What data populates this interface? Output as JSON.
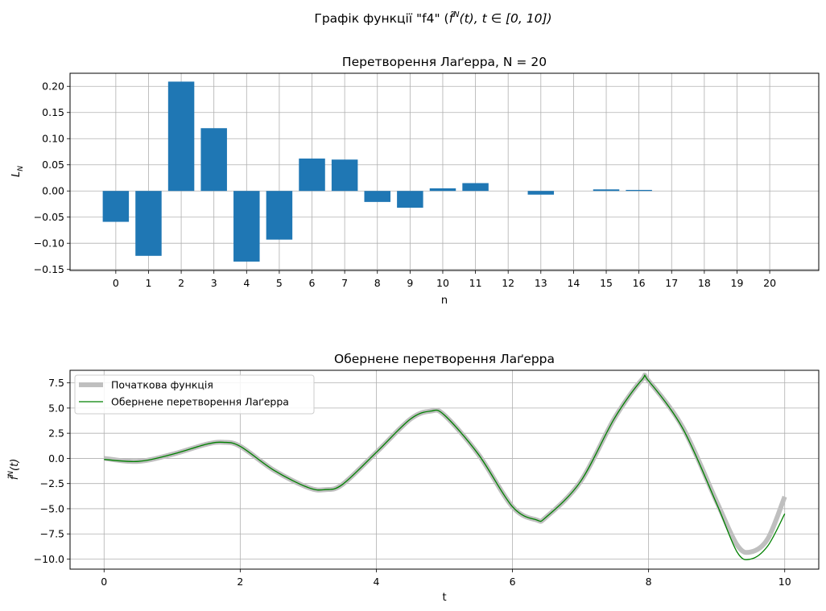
{
  "figure": {
    "suptitle_pre": "Графік функції \"f4\" (",
    "suptitle_sym": "f̃",
    "suptitle_sup": "N",
    "suptitle_post": "(t), t ∈ [0, 10])"
  },
  "chart_data": [
    {
      "type": "bar",
      "title": "Перетворення Лаґерра, N = 20",
      "xlabel": "n",
      "ylabel_main": "L",
      "ylabel_sub": "N",
      "grid": true,
      "color": "#1f77b4",
      "categories": [
        "0",
        "1",
        "2",
        "3",
        "4",
        "5",
        "6",
        "7",
        "8",
        "9",
        "10",
        "11",
        "12",
        "13",
        "14",
        "15",
        "16",
        "17",
        "18",
        "19",
        "20"
      ],
      "values": [
        -0.059,
        -0.124,
        0.209,
        0.12,
        -0.135,
        -0.093,
        0.062,
        0.06,
        -0.021,
        -0.032,
        0.005,
        0.015,
        0.0,
        -0.007,
        0.0,
        0.003,
        0.002,
        0.0,
        0.0,
        0.0,
        0.0
      ],
      "xlim": [
        -1.4,
        21.5
      ],
      "ylim": [
        -0.152,
        0.225
      ],
      "yticks": [
        -0.15,
        -0.1,
        -0.05,
        0.0,
        0.05,
        0.1,
        0.15,
        0.2
      ],
      "ytick_labels": [
        "−0.15",
        "−0.10",
        "−0.05",
        "0.00",
        "0.05",
        "0.10",
        "0.15",
        "0.20"
      ]
    },
    {
      "type": "line",
      "title": "Обернене перетворення Лаґерра",
      "xlabel": "t",
      "ylabel_sym": "f̃",
      "ylabel_sup": "N",
      "ylabel_post": "(t)",
      "grid": true,
      "legend_position": "top-left",
      "xlim": [
        -0.5,
        10.5
      ],
      "ylim": [
        -11.0,
        8.75
      ],
      "xticks": [
        0,
        2,
        4,
        6,
        8,
        10
      ],
      "xtick_labels": [
        "0",
        "2",
        "4",
        "6",
        "8",
        "10"
      ],
      "yticks": [
        -10.0,
        -7.5,
        -5.0,
        -2.5,
        0.0,
        2.5,
        5.0,
        7.5
      ],
      "ytick_labels": [
        "−10.0",
        "−7.5",
        "−5.0",
        "−2.5",
        "0.0",
        "2.5",
        "5.0",
        "7.5"
      ],
      "series": [
        {
          "name": "Початкова функція",
          "color": "#bfbfbf",
          "x": [
            0,
            0.5,
            1.0,
            1.5,
            1.75,
            2.0,
            2.5,
            3.0,
            3.25,
            3.5,
            4.0,
            4.5,
            4.8,
            5.0,
            5.5,
            6.0,
            6.35,
            6.5,
            7.0,
            7.5,
            7.9,
            8.0,
            8.5,
            9.0,
            9.3,
            9.5,
            9.75,
            10.0
          ],
          "y": [
            0.0,
            -0.3,
            0.4,
            1.4,
            1.6,
            1.2,
            -1.2,
            -2.9,
            -3.1,
            -2.6,
            0.6,
            3.9,
            4.7,
            4.3,
            0.4,
            -4.8,
            -6.1,
            -5.8,
            -2.3,
            4.0,
            7.8,
            7.7,
            3.1,
            -4.3,
            -8.6,
            -9.3,
            -8.0,
            -3.8
          ]
        },
        {
          "name": "Обернене перетворення Лаґерра",
          "color": "#008000",
          "x": [
            0,
            0.5,
            1.0,
            1.5,
            1.75,
            2.0,
            2.5,
            3.0,
            3.25,
            3.5,
            4.0,
            4.5,
            4.8,
            5.0,
            5.5,
            6.0,
            6.35,
            6.5,
            7.0,
            7.5,
            7.9,
            8.0,
            8.5,
            9.0,
            9.3,
            9.5,
            9.75,
            10.0
          ],
          "y": [
            -0.1,
            -0.3,
            0.4,
            1.4,
            1.6,
            1.2,
            -1.2,
            -2.9,
            -3.1,
            -2.6,
            0.6,
            3.9,
            4.7,
            4.3,
            0.4,
            -4.8,
            -6.1,
            -5.8,
            -2.3,
            4.0,
            7.8,
            7.7,
            3.0,
            -4.5,
            -9.3,
            -10.0,
            -8.7,
            -5.5
          ]
        }
      ]
    }
  ]
}
